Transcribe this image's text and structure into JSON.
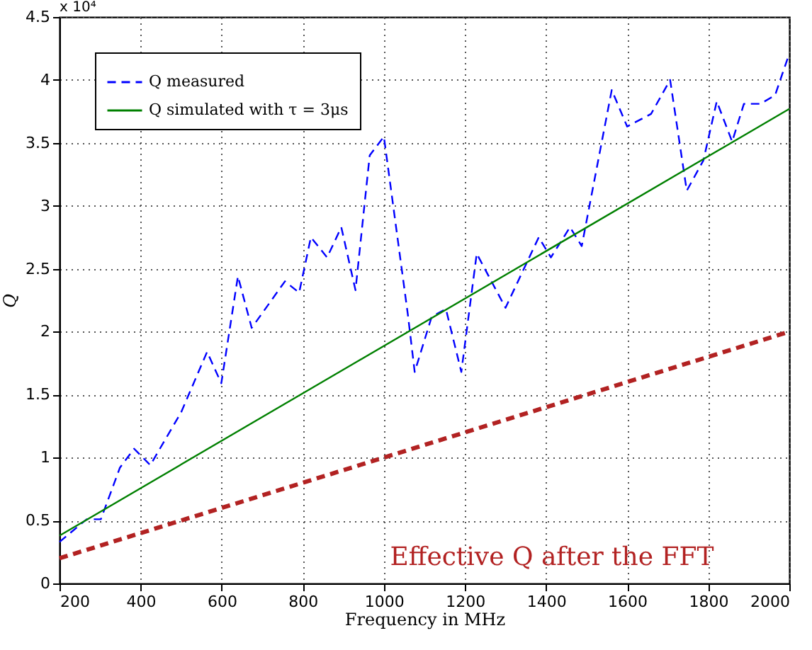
{
  "chart_data": {
    "type": "line",
    "xlabel": "Frequency in MHz",
    "ylabel": "Q",
    "xlim": [
      200,
      2000
    ],
    "ylim": [
      0,
      4.5
    ],
    "xticks": [
      200,
      400,
      600,
      800,
      1000,
      1200,
      1400,
      1600,
      1800,
      2000
    ],
    "yticks": [
      0,
      0.5,
      1,
      1.5,
      2,
      2.5,
      3,
      3.5,
      4,
      4.5
    ],
    "grid": true,
    "legend": "top left",
    "annotations": [
      "x 10⁴"
    ],
    "series": [
      {
        "name": "Q measured",
        "color": "#0000ff",
        "line_style": "dashed",
        "x": [
          200,
          267,
          302,
          349,
          384,
          424,
          500,
          564,
          599,
          640,
          674,
          756,
          791,
          820,
          860,
          895,
          930,
          965,
          1000,
          1059,
          1076,
          1118,
          1153,
          1191,
          1229,
          1300,
          1382,
          1412,
          1459,
          1488,
          1562,
          1600,
          1659,
          1706,
          1747,
          1788,
          1821,
          1859,
          1888,
          1929,
          1965,
          2000
        ],
        "values": [
          0.33,
          0.51,
          0.51,
          0.92,
          1.07,
          0.94,
          1.36,
          1.84,
          1.59,
          2.44,
          2.03,
          2.4,
          2.31,
          2.75,
          2.59,
          2.83,
          2.33,
          3.4,
          3.55,
          2.14,
          1.68,
          2.12,
          2.18,
          1.68,
          2.62,
          2.19,
          2.75,
          2.59,
          2.83,
          2.68,
          3.92,
          3.63,
          3.73,
          4.0,
          3.12,
          3.36,
          3.83,
          3.51,
          3.81,
          3.81,
          3.88,
          4.21
        ]
      },
      {
        "name": "Q simulated with τ = 3μs",
        "color": "#008000",
        "line_style": "solid",
        "x": [
          200,
          2000
        ],
        "values": [
          0.38,
          3.77
        ]
      },
      {
        "name": "Effective Q after the FFT",
        "color": "#b22222",
        "line_style": "dashed",
        "x": [
          200,
          2000
        ],
        "values": [
          0.2,
          2.0
        ]
      }
    ]
  }
}
